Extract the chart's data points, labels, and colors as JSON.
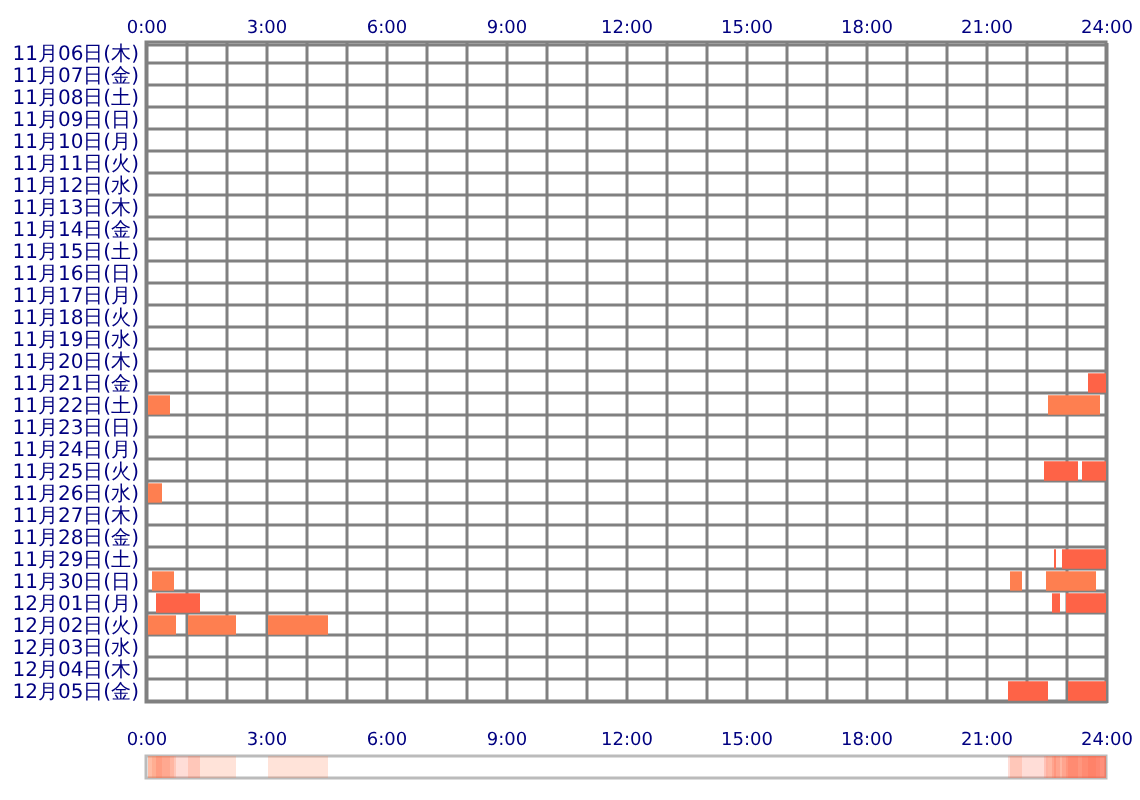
{
  "chart_data": {
    "type": "bar",
    "orientation": "horizontal",
    "grid": true,
    "categories": [
      "11月06日(木)",
      "11月07日(金)",
      "11月08日(土)",
      "11月09日(日)",
      "11月10日(月)",
      "11月11日(火)",
      "11月12日(水)",
      "11月13日(木)",
      "11月14日(金)",
      "11月15日(土)",
      "11月16日(日)",
      "11月17日(月)",
      "11月18日(火)",
      "11月19日(水)",
      "11月20日(木)",
      "11月21日(金)",
      "11月22日(土)",
      "11月23日(日)",
      "11月24日(月)",
      "11月25日(火)",
      "11月26日(水)",
      "11月27日(木)",
      "11月28日(金)",
      "11月29日(土)",
      "11月30日(日)",
      "12月01日(月)",
      "12月02日(火)",
      "12月03日(水)",
      "12月04日(木)",
      "12月05日(金)"
    ],
    "series": [
      {
        "color": "#fe7f50",
        "base": [
          null,
          null,
          null,
          null,
          null,
          null,
          null,
          null,
          null,
          null,
          null,
          null,
          null,
          null,
          null,
          null,
          0.05,
          null,
          null,
          null,
          0.05,
          null,
          null,
          null,
          0.15,
          null,
          0.05,
          null,
          null,
          null
        ],
        "values": [
          null,
          null,
          null,
          null,
          null,
          null,
          null,
          null,
          null,
          null,
          null,
          null,
          null,
          null,
          null,
          null,
          0.55,
          null,
          null,
          null,
          0.35,
          null,
          null,
          null,
          0.55,
          null,
          0.7,
          null,
          null,
          null
        ]
      },
      {
        "color": "#fe7f50",
        "base": [
          null,
          null,
          null,
          null,
          null,
          null,
          null,
          null,
          null,
          null,
          null,
          null,
          null,
          null,
          null,
          null,
          22.55,
          null,
          null,
          null,
          null,
          null,
          null,
          null,
          22.5,
          null,
          1.05,
          null,
          null,
          null
        ],
        "values": [
          null,
          null,
          null,
          null,
          null,
          null,
          null,
          null,
          null,
          null,
          null,
          null,
          null,
          null,
          null,
          null,
          1.3,
          null,
          null,
          null,
          null,
          null,
          null,
          null,
          1.25,
          null,
          1.2,
          null,
          null,
          null
        ]
      },
      {
        "color": "#fe7f50",
        "base": [
          null,
          null,
          null,
          null,
          null,
          null,
          null,
          null,
          null,
          null,
          null,
          null,
          null,
          null,
          null,
          null,
          null,
          null,
          null,
          null,
          null,
          null,
          null,
          null,
          21.6,
          null,
          3.05,
          null,
          null,
          null
        ],
        "values": [
          null,
          null,
          null,
          null,
          null,
          null,
          null,
          null,
          null,
          null,
          null,
          null,
          null,
          null,
          null,
          null,
          null,
          null,
          null,
          null,
          null,
          null,
          null,
          null,
          0.3,
          null,
          1.5,
          null,
          null,
          null
        ]
      },
      {
        "color": "#fe6347",
        "base": [
          null,
          null,
          null,
          null,
          null,
          null,
          null,
          null,
          null,
          null,
          null,
          null,
          null,
          null,
          null,
          23.55,
          null,
          null,
          null,
          22.45,
          null,
          null,
          null,
          22.7,
          null,
          0.25,
          null,
          null,
          null,
          21.55
        ],
        "values": [
          null,
          null,
          null,
          null,
          null,
          null,
          null,
          null,
          null,
          null,
          null,
          null,
          null,
          null,
          null,
          0.45,
          null,
          null,
          null,
          0.85,
          null,
          null,
          null,
          0.05,
          null,
          1.1,
          null,
          null,
          null,
          1.0
        ]
      },
      {
        "color": "#fe6347",
        "base": [
          null,
          null,
          null,
          null,
          null,
          null,
          null,
          null,
          null,
          null,
          null,
          null,
          null,
          null,
          null,
          null,
          null,
          null,
          null,
          23.4,
          null,
          null,
          null,
          22.9,
          null,
          22.65,
          null,
          null,
          null,
          23.05
        ],
        "values": [
          null,
          null,
          null,
          null,
          null,
          null,
          null,
          null,
          null,
          null,
          null,
          null,
          null,
          null,
          null,
          null,
          null,
          null,
          null,
          0.6,
          null,
          null,
          null,
          1.1,
          null,
          0.2,
          null,
          null,
          null,
          0.95
        ]
      },
      {
        "color": "#fe6347",
        "base": [
          null,
          null,
          null,
          null,
          null,
          null,
          null,
          null,
          null,
          null,
          null,
          null,
          null,
          null,
          null,
          null,
          null,
          null,
          null,
          null,
          null,
          null,
          null,
          null,
          null,
          23.0,
          null,
          null,
          null,
          null
        ],
        "values": [
          null,
          null,
          null,
          null,
          null,
          null,
          null,
          null,
          null,
          null,
          null,
          null,
          null,
          null,
          null,
          null,
          null,
          null,
          null,
          null,
          null,
          null,
          null,
          null,
          null,
          1.0,
          null,
          null,
          null,
          null
        ]
      }
    ],
    "x2lim": [
      0,
      24
    ],
    "x2ticks": [
      {
        "value": 0,
        "label": "0:00"
      },
      {
        "value": 1,
        "label": null
      },
      {
        "value": 2,
        "label": null
      },
      {
        "value": 3,
        "label": "3:00"
      },
      {
        "value": 4,
        "label": null
      },
      {
        "value": 5,
        "label": null
      },
      {
        "value": 6,
        "label": "6:00"
      },
      {
        "value": 7,
        "label": null
      },
      {
        "value": 8,
        "label": null
      },
      {
        "value": 9,
        "label": "9:00"
      },
      {
        "value": 10,
        "label": null
      },
      {
        "value": 11,
        "label": null
      },
      {
        "value": 12,
        "label": "12:00"
      },
      {
        "value": 13,
        "label": null
      },
      {
        "value": 14,
        "label": null
      },
      {
        "value": 15,
        "label": "15:00"
      },
      {
        "value": 16,
        "label": null
      },
      {
        "value": 17,
        "label": null
      },
      {
        "value": 18,
        "label": "18:00"
      },
      {
        "value": 19,
        "label": null
      },
      {
        "value": 20,
        "label": null
      },
      {
        "value": 21,
        "label": "21:00"
      },
      {
        "value": 22,
        "label": null
      },
      {
        "value": 23,
        "label": null
      },
      {
        "value": 24,
        "label": "24:00"
      }
    ],
    "xlim": [
      0,
      24
    ],
    "xticks": [
      {
        "value": 0,
        "label": "0:00"
      },
      {
        "value": 3,
        "label": "3:00"
      },
      {
        "value": 6,
        "label": "6:00"
      },
      {
        "value": 9,
        "label": "9:00"
      },
      {
        "value": 12,
        "label": "12:00"
      },
      {
        "value": 15,
        "label": "15:00"
      },
      {
        "value": 18,
        "label": "18:00"
      },
      {
        "value": 21,
        "label": "21:00"
      },
      {
        "value": 24,
        "label": "24:00"
      }
    ]
  }
}
